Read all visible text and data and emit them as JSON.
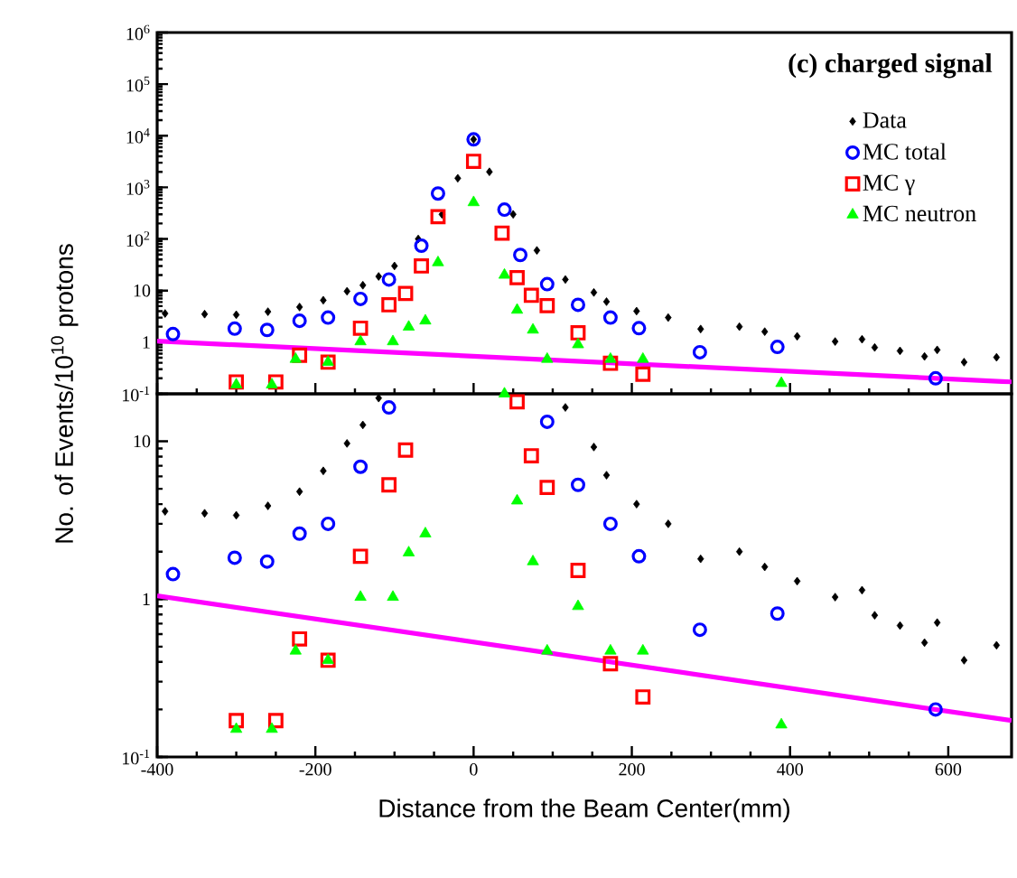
{
  "chart_data": [
    {
      "type": "scatter",
      "xlim": [
        -400,
        680
      ],
      "xticks": [
        -400,
        -200,
        0,
        200,
        400,
        600
      ],
      "ylim": [
        0.1,
        1000000
      ],
      "log": "y",
      "tick_labels": "y",
      "legend": "top right",
      "annotations": [
        "(c) charged signal"
      ],
      "yticks": [
        {
          "value": 0.1,
          "label": "10$^{-1}$"
        },
        1,
        10,
        {
          "value": 100,
          "label": "10$^{2}$"
        },
        {
          "value": 1000,
          "label": "10$^{3}$"
        },
        {
          "value": 10000,
          "label": "10$^{4}$"
        },
        {
          "value": 100000,
          "label": "10$^{5}$"
        },
        {
          "value": 1000000,
          "label": "10$^{6}$"
        }
      ],
      "series": [
        {
          "name": "Data",
          "type": "scatter",
          "marker": "diamond",
          "color": "#000000",
          "x": [
            -390,
            -340,
            -300,
            -260,
            -220,
            -190,
            -160,
            -140,
            -120,
            -100,
            -70,
            -40,
            -20,
            0,
            20,
            50,
            80,
            116,
            152,
            168,
            206,
            246,
            287,
            336,
            368,
            409,
            457,
            491,
            507,
            539,
            570,
            586,
            620,
            661
          ],
          "values": [
            3.6,
            3.5,
            3.4,
            3.9,
            4.8,
            6.5,
            9.7,
            12.7,
            18.8,
            30,
            100,
            300,
            1500,
            8500,
            2000,
            300,
            60,
            16.4,
            9.2,
            6.1,
            4.0,
            3.0,
            1.8,
            2.0,
            1.6,
            1.3,
            1.03,
            1.14,
            0.79,
            0.68,
            0.53,
            0.71,
            0.41,
            0.51
          ]
        },
        {
          "name": "MC total",
          "type": "scatter",
          "marker": "circle",
          "color": "#0000ff",
          "x": [
            -380,
            -302,
            -261,
            -220,
            -184,
            -143,
            -107,
            -66,
            -45,
            0,
            39,
            59,
            93,
            132,
            173,
            209,
            286,
            384,
            584
          ],
          "values": [
            1.44,
            1.83,
            1.73,
            2.6,
            3.0,
            6.9,
            16.4,
            74,
            760,
            8500,
            370,
            49,
            13.3,
            5.3,
            3.0,
            1.87,
            0.64,
            0.81,
            0.2
          ]
        },
        {
          "name": "MC γ",
          "type": "scatter",
          "marker": "square",
          "color": "#ff0000",
          "x": [
            -300,
            -250,
            -220,
            -184,
            -143,
            -107,
            -86,
            -66,
            -45,
            0,
            36,
            55,
            73,
            93,
            132,
            173,
            214
          ],
          "values": [
            0.17,
            0.17,
            0.56,
            0.41,
            1.87,
            5.3,
            8.8,
            30,
            270,
            3200,
            130,
            17.8,
            8.1,
            5.1,
            1.52,
            0.39,
            0.24
          ]
        },
        {
          "name": "MC neutron",
          "type": "scatter",
          "marker": "triangle",
          "color": "#00ff00",
          "x": [
            -300,
            -255,
            -225,
            -184,
            -143,
            -102,
            -82,
            -61,
            -45,
            0,
            39,
            55,
            75,
            93,
            132,
            173,
            214,
            389
          ],
          "values": [
            0.15,
            0.15,
            0.47,
            0.41,
            1.03,
            1.03,
            1.97,
            2.6,
            35,
            510,
            20,
            4.2,
            1.73,
            0.47,
            0.9,
            0.47,
            0.47,
            0.16
          ]
        },
        {
          "type": "line",
          "marker": "none",
          "color": "#ff00ff",
          "x": [
            -400,
            680
          ],
          "values": [
            1.05,
            0.17
          ]
        }
      ]
    },
    {
      "type": "scatter",
      "xlim": [
        -400,
        680
      ],
      "xticks": [
        -400,
        -200,
        0,
        200,
        400,
        600
      ],
      "ylim": [
        0.1,
        20
      ],
      "log": "y",
      "xlabel": "Distance from the Beam Center(mm)",
      "ylabel": "No. of Events/10$^{10}$ protons",
      "yticks": [
        {
          "value": 0.1,
          "label": "10$^{-1}$"
        },
        1,
        10
      ],
      "series": [
        {
          "type": "scatter",
          "marker": "diamond",
          "color": "#000000",
          "x": [
            -390,
            -340,
            -300,
            -260,
            -220,
            -190,
            -160,
            -140,
            -120,
            116,
            152,
            168,
            206,
            246,
            287,
            336,
            368,
            409,
            457,
            491,
            507,
            539,
            570,
            586,
            620,
            661
          ],
          "values": [
            3.6,
            3.5,
            3.4,
            3.9,
            4.8,
            6.5,
            9.7,
            12.7,
            18.8,
            16.4,
            9.2,
            6.1,
            4.0,
            3.0,
            1.8,
            2.0,
            1.6,
            1.3,
            1.03,
            1.14,
            0.79,
            0.68,
            0.53,
            0.71,
            0.41,
            0.51
          ]
        },
        {
          "type": "scatter",
          "marker": "circle",
          "color": "#0000ff",
          "x": [
            -380,
            -302,
            -261,
            -220,
            -184,
            -143,
            -107,
            93,
            132,
            173,
            209,
            286,
            384,
            584
          ],
          "values": [
            1.44,
            1.83,
            1.73,
            2.6,
            3.0,
            6.9,
            16.4,
            13.3,
            5.3,
            3.0,
            1.87,
            0.64,
            0.81,
            0.2
          ]
        },
        {
          "type": "scatter",
          "marker": "square",
          "color": "#ff0000",
          "x": [
            -300,
            -250,
            -220,
            -184,
            -143,
            -107,
            -86,
            55,
            73,
            93,
            132,
            173,
            214
          ],
          "values": [
            0.17,
            0.17,
            0.56,
            0.41,
            1.87,
            5.3,
            8.8,
            17.8,
            8.1,
            5.1,
            1.52,
            0.39,
            0.24
          ]
        },
        {
          "type": "scatter",
          "marker": "triangle",
          "color": "#00ff00",
          "x": [
            -300,
            -255,
            -225,
            -184,
            -143,
            -102,
            -82,
            -61,
            39,
            55,
            75,
            93,
            132,
            173,
            214,
            389
          ],
          "values": [
            0.15,
            0.15,
            0.47,
            0.41,
            1.03,
            1.03,
            1.97,
            2.6,
            20,
            4.2,
            1.73,
            0.47,
            0.9,
            0.47,
            0.47,
            0.16
          ]
        },
        {
          "type": "line",
          "marker": "none",
          "color": "#ff00ff",
          "x": [
            -400,
            680
          ],
          "values": [
            1.05,
            0.17
          ]
        }
      ]
    }
  ]
}
